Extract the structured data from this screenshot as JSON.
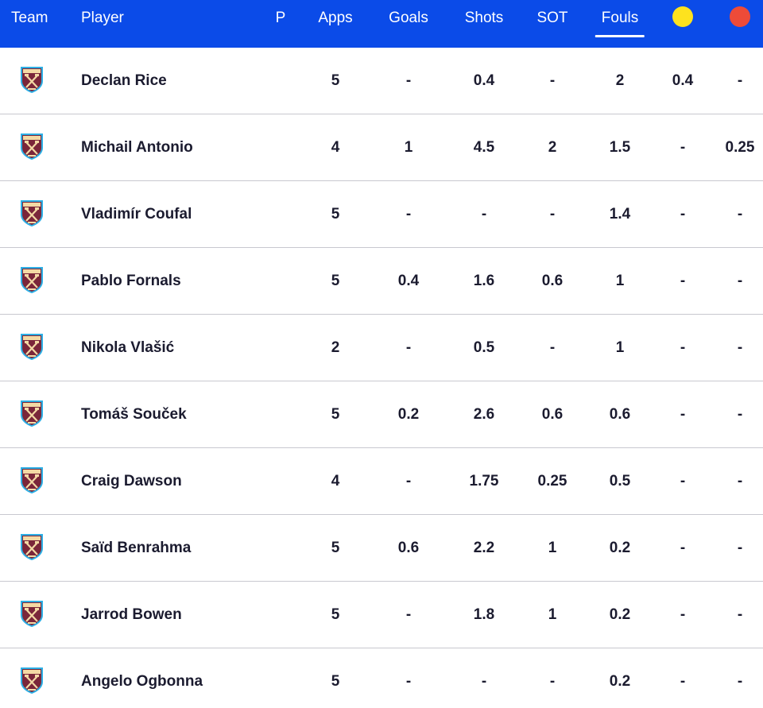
{
  "header": {
    "team": "Team",
    "player": "Player",
    "p": "P",
    "apps": "Apps",
    "goals": "Goals",
    "shots": "Shots",
    "sot": "SOT",
    "fouls": "Fouls",
    "active_sort": "fouls",
    "yellow_card_icon": "yellow-card-icon",
    "red_card_icon": "red-card-icon"
  },
  "colors": {
    "header_bg": "#0b4be8",
    "yellow_card": "#fde21e",
    "red_card": "#ee4b38",
    "badge_claret": "#7a263a",
    "badge_blue": "#2dafe5"
  },
  "team_badge_icon": "west-ham-crest-icon",
  "rows": [
    {
      "player": "Declan Rice",
      "apps": "5",
      "goals": "-",
      "shots": "0.4",
      "sot": "-",
      "fouls": "2",
      "yellow": "0.4",
      "red": "-"
    },
    {
      "player": "Michail Antonio",
      "apps": "4",
      "goals": "1",
      "shots": "4.5",
      "sot": "2",
      "fouls": "1.5",
      "yellow": "-",
      "red": "0.25"
    },
    {
      "player": "Vladimír Coufal",
      "apps": "5",
      "goals": "-",
      "shots": "-",
      "sot": "-",
      "fouls": "1.4",
      "yellow": "-",
      "red": "-"
    },
    {
      "player": "Pablo Fornals",
      "apps": "5",
      "goals": "0.4",
      "shots": "1.6",
      "sot": "0.6",
      "fouls": "1",
      "yellow": "-",
      "red": "-"
    },
    {
      "player": "Nikola Vlašić",
      "apps": "2",
      "goals": "-",
      "shots": "0.5",
      "sot": "-",
      "fouls": "1",
      "yellow": "-",
      "red": "-"
    },
    {
      "player": "Tomáš Souček",
      "apps": "5",
      "goals": "0.2",
      "shots": "2.6",
      "sot": "0.6",
      "fouls": "0.6",
      "yellow": "-",
      "red": "-"
    },
    {
      "player": "Craig Dawson",
      "apps": "4",
      "goals": "-",
      "shots": "1.75",
      "sot": "0.25",
      "fouls": "0.5",
      "yellow": "-",
      "red": "-"
    },
    {
      "player": "Saïd Benrahma",
      "apps": "5",
      "goals": "0.6",
      "shots": "2.2",
      "sot": "1",
      "fouls": "0.2",
      "yellow": "-",
      "red": "-"
    },
    {
      "player": "Jarrod Bowen",
      "apps": "5",
      "goals": "-",
      "shots": "1.8",
      "sot": "1",
      "fouls": "0.2",
      "yellow": "-",
      "red": "-"
    },
    {
      "player": "Angelo Ogbonna",
      "apps": "5",
      "goals": "-",
      "shots": "-",
      "sot": "-",
      "fouls": "0.2",
      "yellow": "-",
      "red": "-"
    }
  ]
}
